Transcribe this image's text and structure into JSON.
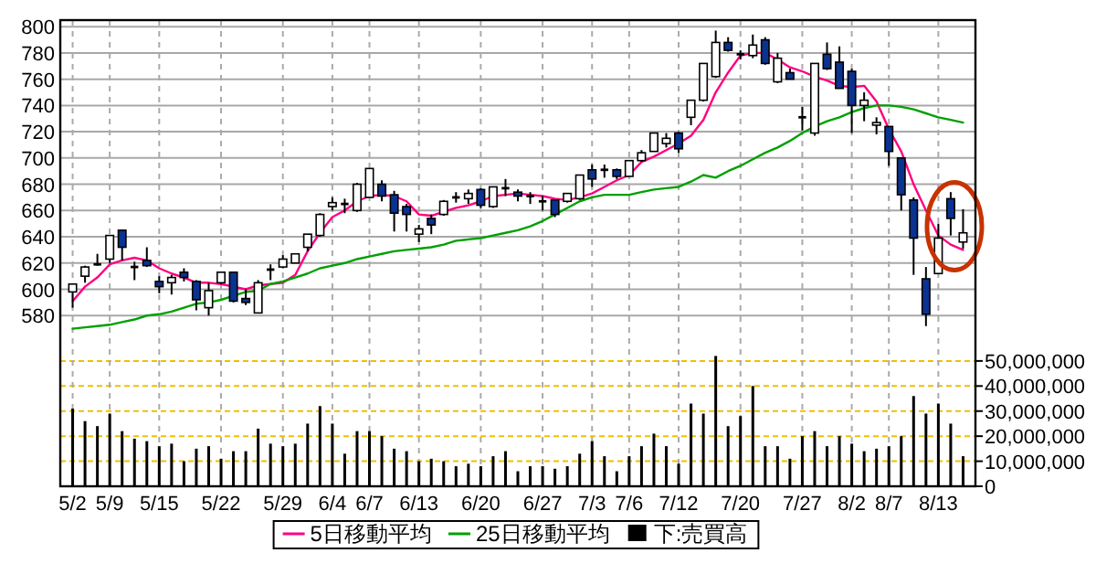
{
  "chart_data": {
    "type": "candlestick",
    "categories": [
      "5/2",
      null,
      null,
      "5/9",
      null,
      null,
      null,
      "5/15",
      null,
      null,
      null,
      null,
      "5/22",
      null,
      null,
      null,
      null,
      "5/29",
      null,
      null,
      null,
      "6/4",
      null,
      null,
      "6/7",
      null,
      null,
      null,
      "6/13",
      null,
      null,
      null,
      null,
      "6/20",
      null,
      null,
      null,
      null,
      "6/27",
      null,
      null,
      null,
      "7/3",
      null,
      null,
      "7/6",
      null,
      null,
      null,
      "7/12",
      null,
      null,
      null,
      null,
      "7/20",
      null,
      null,
      null,
      null,
      "7/27",
      null,
      null,
      null,
      "8/2",
      null,
      null,
      "8/7",
      null,
      null,
      null,
      "8/13",
      null,
      null
    ],
    "ohlc": [
      [
        598,
        604,
        586,
        604
      ],
      [
        610,
        618,
        605,
        617
      ],
      [
        619,
        627,
        618,
        619
      ],
      [
        623,
        641,
        620,
        641
      ],
      [
        645,
        645,
        622,
        632
      ],
      [
        617,
        621,
        607,
        617
      ],
      [
        622,
        632,
        617,
        618
      ],
      [
        606,
        610,
        597,
        602
      ],
      [
        605,
        611,
        596,
        609
      ],
      [
        613,
        616,
        606,
        609
      ],
      [
        606,
        607,
        584,
        592
      ],
      [
        586,
        605,
        580,
        599
      ],
      [
        605,
        613,
        604,
        613
      ],
      [
        613,
        613,
        590,
        591
      ],
      [
        593,
        600,
        588,
        590
      ],
      [
        582,
        607,
        582,
        605
      ],
      [
        615,
        619,
        607,
        615
      ],
      [
        617,
        626,
        616,
        623
      ],
      [
        620,
        627,
        620,
        627
      ],
      [
        632,
        642,
        629,
        642
      ],
      [
        641,
        658,
        640,
        657
      ],
      [
        663,
        670,
        660,
        666
      ],
      [
        665,
        669,
        658,
        665
      ],
      [
        660,
        681,
        659,
        680
      ],
      [
        670,
        692,
        670,
        692
      ],
      [
        680,
        683,
        667,
        671
      ],
      [
        672,
        675,
        644,
        658
      ],
      [
        663,
        665,
        644,
        657
      ],
      [
        642,
        649,
        636,
        646
      ],
      [
        654,
        657,
        642,
        649
      ],
      [
        657,
        668,
        656,
        667
      ],
      [
        670,
        674,
        666,
        670
      ],
      [
        669,
        676,
        665,
        673
      ],
      [
        676,
        677,
        662,
        664
      ],
      [
        663,
        678,
        662,
        678
      ],
      [
        677,
        684,
        671,
        677
      ],
      [
        674,
        676,
        667,
        671
      ],
      [
        671,
        674,
        665,
        671
      ],
      [
        667,
        671,
        660,
        667
      ],
      [
        668,
        668,
        655,
        657
      ],
      [
        667,
        673,
        666,
        673
      ],
      [
        669,
        687,
        668,
        687
      ],
      [
        691,
        695,
        678,
        684
      ],
      [
        691,
        695,
        685,
        691
      ],
      [
        691,
        692,
        684,
        686
      ],
      [
        686,
        698,
        686,
        698
      ],
      [
        698,
        706,
        697,
        704
      ],
      [
        705,
        719,
        705,
        719
      ],
      [
        711,
        719,
        708,
        715
      ],
      [
        719,
        720,
        704,
        707
      ],
      [
        731,
        744,
        725,
        744
      ],
      [
        744,
        772,
        743,
        772
      ],
      [
        762,
        797,
        761,
        788
      ],
      [
        788,
        792,
        781,
        782
      ],
      [
        779,
        782,
        775,
        779
      ],
      [
        778,
        794,
        776,
        786
      ],
      [
        790,
        792,
        771,
        772
      ],
      [
        758,
        780,
        757,
        776
      ],
      [
        765,
        768,
        760,
        760
      ],
      [
        731,
        739,
        721,
        731
      ],
      [
        719,
        772,
        717,
        772
      ],
      [
        779,
        788,
        767,
        768
      ],
      [
        773,
        785,
        753,
        753
      ],
      [
        766,
        768,
        719,
        740
      ],
      [
        740,
        750,
        728,
        744
      ],
      [
        725,
        731,
        718,
        727
      ],
      [
        724,
        724,
        694,
        705
      ],
      [
        700,
        700,
        660,
        672
      ],
      [
        668,
        670,
        611,
        639
      ],
      [
        608,
        617,
        572,
        581
      ],
      [
        612,
        650,
        612,
        639
      ],
      [
        669,
        674,
        641,
        654
      ],
      [
        636,
        661,
        631,
        643
      ]
    ],
    "series": [
      {
        "name": "5日移動平均",
        "type": "line",
        "color": "#ff0080",
        "values": [
          591,
          602,
          609,
          619,
          622,
          624,
          622,
          616,
          612,
          609,
          605,
          605,
          604,
          602,
          600,
          603,
          604,
          605,
          611,
          629,
          643,
          655,
          660,
          667,
          671,
          672,
          671,
          667,
          657,
          656,
          659,
          662,
          664,
          667,
          671,
          672,
          673,
          672,
          671,
          669,
          668,
          670,
          673,
          678,
          683,
          687,
          697,
          701,
          706,
          711,
          717,
          729,
          750,
          765,
          778,
          780,
          780,
          775,
          769,
          766,
          762,
          759,
          755,
          754,
          755,
          743,
          722,
          705,
          680,
          660,
          641,
          634,
          630
        ]
      },
      {
        "name": "25日移動平均",
        "type": "line",
        "color": "#00a000",
        "values": [
          570,
          571,
          572,
          573,
          575,
          577,
          580,
          581,
          583,
          586,
          589,
          590,
          592,
          595,
          598,
          599,
          604,
          606,
          609,
          612,
          616,
          618,
          620,
          623,
          625,
          627,
          629,
          630,
          631,
          632,
          634,
          637,
          638,
          639,
          641,
          643,
          645,
          648,
          652,
          657,
          662,
          667,
          670,
          672,
          672,
          672,
          674,
          676,
          677,
          678,
          682,
          687,
          685,
          690,
          694,
          699,
          704,
          708,
          713,
          719,
          724,
          728,
          731,
          735,
          738,
          740,
          740,
          739,
          737,
          734,
          731,
          729,
          727
        ]
      },
      {
        "name": "下:売買高",
        "type": "bar",
        "axis": "y2",
        "color": "#000000",
        "values": [
          31000000,
          26000000,
          24000000,
          29000000,
          22000000,
          19000000,
          18000000,
          16000000,
          17000000,
          10000000,
          15000000,
          16000000,
          11000000,
          14000000,
          14000000,
          23000000,
          17000000,
          16000000,
          17000000,
          25000000,
          32000000,
          25000000,
          13000000,
          22000000,
          22000000,
          20000000,
          15000000,
          14000000,
          10000000,
          11000000,
          10000000,
          8000000,
          9000000,
          8000000,
          12000000,
          14000000,
          6000000,
          8000000,
          8000000,
          7000000,
          8000000,
          13000000,
          18000000,
          12000000,
          6000000,
          12000000,
          16000000,
          21000000,
          16000000,
          9000000,
          33000000,
          29000000,
          52000000,
          24000000,
          28000000,
          40000000,
          16000000,
          16000000,
          11000000,
          20000000,
          22000000,
          16000000,
          20000000,
          17000000,
          14000000,
          15000000,
          16000000,
          20000000,
          36000000,
          29000000,
          33000000,
          25000000,
          12000000
        ]
      }
    ],
    "ylim": [
      450,
      805
    ],
    "yticks": [
      580,
      600,
      620,
      640,
      660,
      680,
      700,
      720,
      740,
      760,
      780,
      800
    ],
    "y2lim": [
      0,
      186000000
    ],
    "y2ticks": [
      0,
      {
        "value": 10000000,
        "label": "10,000,000"
      },
      {
        "value": 20000000,
        "label": "20,000,000"
      },
      {
        "value": 30000000,
        "label": "30,000,000"
      },
      {
        "value": 40000000,
        "label": "40,000,000"
      },
      {
        "value": 50000000,
        "label": "50,000,000"
      }
    ],
    "grid": true,
    "legend": "bottom"
  }
}
